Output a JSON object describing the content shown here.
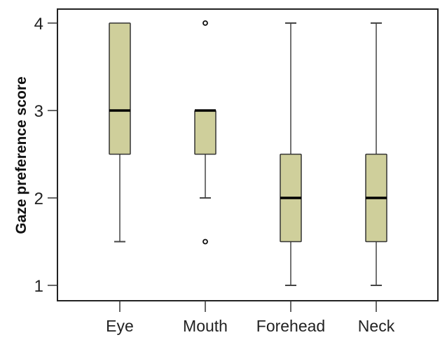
{
  "chart_data": {
    "type": "boxplot",
    "title": "",
    "xlabel": "",
    "ylabel": "Gaze preference score",
    "ylim": [
      0.85,
      4.25
    ],
    "yticks": [
      1,
      2,
      3,
      4
    ],
    "grid": false,
    "legend": null,
    "categories": [
      "Eye",
      "Mouth",
      "Forehead",
      "Neck"
    ],
    "colors": {
      "box_fill": "#cfcf9b",
      "box_stroke": "#333333",
      "median": "#000000",
      "whisker": "#444444"
    },
    "boxes": [
      {
        "category": "Eye",
        "whisker_low": 1.5,
        "q1": 2.5,
        "median": 3,
        "q3": 4,
        "whisker_high": 4,
        "outliers": []
      },
      {
        "category": "Mouth",
        "whisker_low": 2,
        "q1": 2.5,
        "median": 3,
        "q3": 3,
        "whisker_high": 3,
        "outliers": [
          1.5,
          4
        ]
      },
      {
        "category": "Forehead",
        "whisker_low": 1,
        "q1": 1.5,
        "median": 2,
        "q3": 2.5,
        "whisker_high": 4,
        "outliers": []
      },
      {
        "category": "Neck",
        "whisker_low": 1,
        "q1": 1.5,
        "median": 2,
        "q3": 2.5,
        "whisker_high": 4,
        "outliers": []
      }
    ]
  },
  "labels": {
    "ylabel": "Gaze preference score",
    "yticks": [
      "1",
      "2",
      "3",
      "4"
    ],
    "categories": [
      "Eye",
      "Mouth",
      "Forehead",
      "Neck"
    ]
  }
}
